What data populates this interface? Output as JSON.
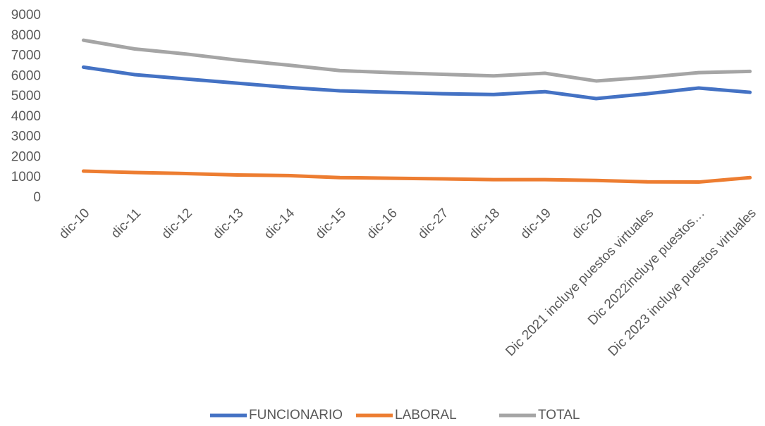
{
  "chart_data": {
    "type": "line",
    "categories": [
      "dic-10",
      "dic-11",
      "dic-12",
      "dic-13",
      "dic-14",
      "dic-15",
      "dic-16",
      "dic-27",
      "dic-18",
      "dic-19",
      "dic-20",
      "Dic 2021 incluye puestos virtuales",
      "Dic 2022incluye puestos…",
      "Dic 2023 incluye puestos virtuales"
    ],
    "series": [
      {
        "name": "FUNCIONARIO",
        "color": "#4472c4",
        "values": [
          6450,
          6080,
          5870,
          5660,
          5450,
          5280,
          5210,
          5140,
          5100,
          5240,
          4900,
          5140,
          5420,
          5210
        ]
      },
      {
        "name": "LABORAL",
        "color": "#ed7d31",
        "values": [
          1320,
          1250,
          1200,
          1130,
          1100,
          1000,
          970,
          940,
          900,
          900,
          860,
          790,
          780,
          1000
        ]
      },
      {
        "name": "TOTAL",
        "color": "#a5a5a5",
        "values": [
          7780,
          7350,
          7100,
          6800,
          6550,
          6280,
          6180,
          6100,
          6020,
          6150,
          5770,
          5950,
          6180,
          6240
        ]
      }
    ],
    "ylim": [
      0,
      9000
    ],
    "yticks": [
      0,
      1000,
      2000,
      3000,
      4000,
      5000,
      6000,
      7000,
      8000,
      9000
    ],
    "grid": false,
    "legend": "bottom"
  }
}
